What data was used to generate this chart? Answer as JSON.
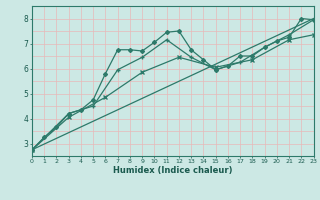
{
  "xlabel": "Humidex (Indice chaleur)",
  "bg_color": "#cce8e4",
  "line_color": "#2d7a6a",
  "grid_color": "#e8b8b8",
  "xlim": [
    0,
    23
  ],
  "ylim": [
    2.5,
    8.5
  ],
  "yticks": [
    3,
    4,
    5,
    6,
    7,
    8
  ],
  "xticks": [
    0,
    1,
    2,
    3,
    4,
    5,
    6,
    7,
    8,
    9,
    10,
    11,
    12,
    13,
    14,
    15,
    16,
    17,
    18,
    19,
    20,
    21,
    22,
    23
  ],
  "line1_x": [
    0,
    1,
    2,
    3,
    4,
    5,
    6,
    7,
    8,
    9,
    10,
    11,
    12,
    13,
    14,
    15,
    16,
    17,
    18,
    19,
    20,
    21,
    22,
    23
  ],
  "line1_y": [
    2.75,
    3.25,
    3.65,
    4.2,
    4.35,
    4.75,
    5.8,
    6.75,
    6.75,
    6.7,
    7.05,
    7.45,
    7.5,
    6.75,
    6.35,
    5.95,
    6.1,
    6.5,
    6.5,
    6.85,
    7.1,
    7.25,
    8.0,
    7.95
  ],
  "line2_x": [
    0,
    3,
    5,
    7,
    9,
    11,
    13,
    15,
    17,
    19,
    21,
    23
  ],
  "line2_y": [
    2.75,
    4.2,
    4.5,
    5.95,
    6.45,
    7.15,
    6.45,
    5.95,
    6.25,
    6.85,
    7.35,
    7.95
  ],
  "line3_x": [
    0,
    3,
    6,
    9,
    12,
    15,
    18,
    21,
    23
  ],
  "line3_y": [
    2.75,
    4.05,
    4.85,
    5.85,
    6.45,
    6.05,
    6.35,
    7.15,
    7.35
  ],
  "line4_x": [
    0,
    23
  ],
  "line4_y": [
    2.75,
    8.0
  ]
}
